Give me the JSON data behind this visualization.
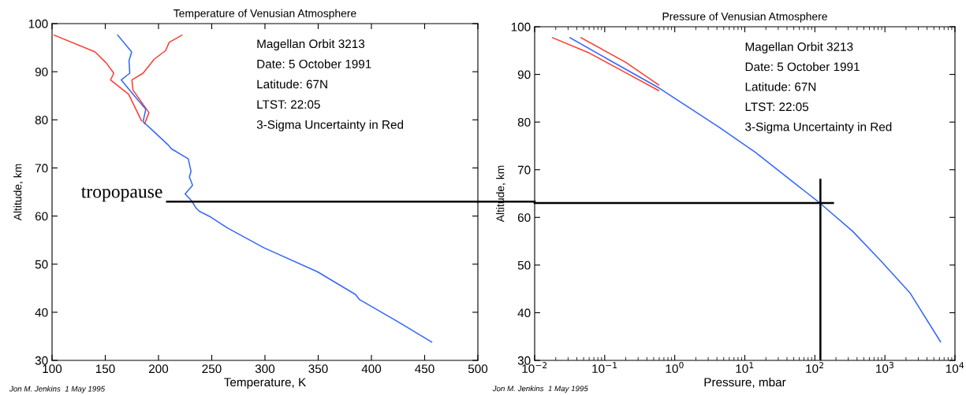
{
  "chart_data": [
    {
      "type": "line",
      "title": "Temperature of Venusian Atmosphere",
      "xlabel": "Temperature, K",
      "ylabel": "Altitude, km",
      "xlim": [
        100,
        500
      ],
      "xticks": [
        100,
        150,
        200,
        250,
        300,
        350,
        400,
        450,
        500
      ],
      "ylim": [
        30,
        100
      ],
      "yticks": [
        30,
        40,
        50,
        60,
        70,
        80,
        90,
        100
      ],
      "grid": false,
      "series": [
        {
          "color": "#ff3b2f",
          "x": [
            102,
            140.5,
            151,
            158,
            155,
            172,
            184
          ],
          "values": [
            97.6,
            94.1,
            91.8,
            89.7,
            88.3,
            85.3,
            79.8
          ]
        },
        {
          "color": "#ff3b2f",
          "x": [
            222,
            210,
            206.7,
            196,
            185.5,
            175,
            176,
            191,
            187
          ],
          "values": [
            97.6,
            96.1,
            94.4,
            92.6,
            89.7,
            88.3,
            86.2,
            81.5,
            79.2
          ]
        },
        {
          "color": "#3366ff",
          "x": [
            161.7,
            174.8,
            172.3,
            173,
            165,
            175,
            188,
            185.5,
            193,
            209,
            212,
            228,
            230.5,
            229,
            232,
            225,
            231,
            235.5,
            238.4,
            249,
            265,
            299,
            349.5,
            385,
            389,
            423.6,
            456.6
          ],
          "values": [
            97.6,
            94.1,
            92.3,
            89.7,
            88.3,
            85.6,
            82.2,
            79.6,
            78.1,
            74.8,
            74.0,
            71.9,
            69.3,
            68.1,
            66.4,
            64.6,
            63.2,
            61.6,
            61.0,
            59.8,
            57.5,
            53.4,
            48.4,
            43.7,
            42.6,
            38.2,
            33.8
          ]
        }
      ],
      "ref_lines": [
        {
          "axis": "y",
          "value": 63,
          "label": "tropopause",
          "color": "#000000"
        }
      ],
      "annotations": [
        "Magellan Orbit 3213",
        "Date: 5 October 1991",
        "Latitude: 67N",
        "LTST: 22:05",
        "3-Sigma Uncertainty in Red",
        "Jon M. Jenkins  1 May 1995"
      ]
    },
    {
      "type": "line",
      "title": "Pressure of Venusian Atmosphere",
      "xlabel": "Pressure, mbar",
      "ylabel": "Altitude, km",
      "log": "x",
      "xlim": [
        0.01,
        10000
      ],
      "xticks": [
        {
          "value": 0.01,
          "label": "10$^{−2}$"
        },
        {
          "value": 0.1,
          "label": "10$^{−1}$"
        },
        {
          "value": 1,
          "label": "10$^{0}$"
        },
        {
          "value": 10,
          "label": "10$^{1}$"
        },
        {
          "value": 100,
          "label": "10$^{2}$"
        },
        {
          "value": 1000,
          "label": "10$^{3}$"
        },
        {
          "value": 10000,
          "label": "10$^{4}$"
        }
      ],
      "ylim": [
        30,
        100
      ],
      "yticks": [
        30,
        40,
        50,
        60,
        70,
        80,
        90,
        100
      ],
      "grid": false,
      "series": [
        {
          "color": "#ff3b2f",
          "x": [
            0.018,
            0.06,
            0.197,
            0.59
          ],
          "values": [
            97.7,
            94.5,
            90.4,
            86.6
          ]
        },
        {
          "color": "#ff3b2f",
          "x": [
            0.046,
            0.197,
            0.59
          ],
          "values": [
            97.7,
            92.6,
            87.8
          ]
        },
        {
          "color": "#3366ff",
          "x": [
            0.032,
            0.12,
            0.59,
            4.33,
            14.3,
            116,
            346,
            849,
            2296,
            6223
          ],
          "values": [
            97.7,
            92.9,
            87.2,
            78.9,
            73.6,
            63.1,
            57.1,
            51.1,
            44.1,
            33.9
          ]
        }
      ],
      "ref_lines": [
        {
          "axis": "y",
          "value": 63,
          "color": "#000000"
        },
        {
          "axis": "x",
          "value": 120,
          "color": "#000000"
        }
      ],
      "annotations": [
        "Magellan Orbit 3213",
        "Date: 5 October 1991",
        "Latitude: 67N",
        "LTST: 22:05",
        "3-Sigma Uncertainty in Red",
        "Jon M. Jenkins  1 May 1995"
      ]
    }
  ]
}
